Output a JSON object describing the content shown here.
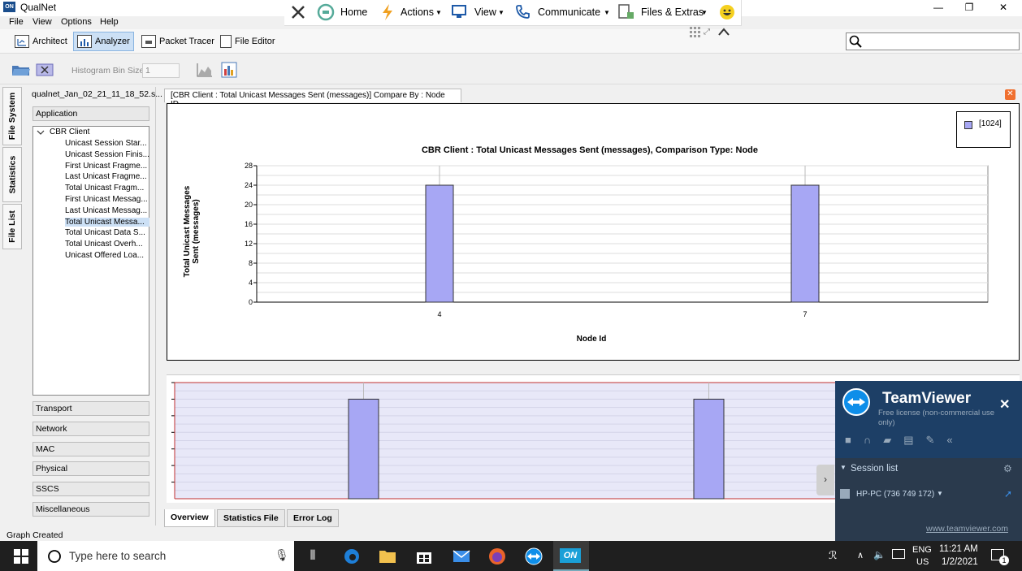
{
  "window": {
    "title": "QualNet",
    "app_icon_text": "ON",
    "minimize": "—",
    "restore": "❐",
    "close": "✕"
  },
  "menu": [
    "File",
    "View",
    "Options",
    "Help"
  ],
  "actions": {
    "home": "Home",
    "actions": "Actions",
    "view": "View",
    "communicate": "Communicate",
    "files_extras": "Files & Extras"
  },
  "modes": {
    "architect": "Architect",
    "analyzer": "Analyzer",
    "packet_tracer": "Packet Tracer",
    "file_editor": "File Editor"
  },
  "toolbar": {
    "histogram_label": "Histogram Bin Size",
    "histogram_value": "1"
  },
  "side_tabs": [
    "File System",
    "Statistics",
    "File List"
  ],
  "left_panel": {
    "filename": "qualnet_Jan_02_21_11_18_52.s...",
    "top_category": "Application",
    "tree_root": "CBR Client",
    "tree_items": [
      "Unicast Session Star...",
      "Unicast Session Finis...",
      "First Unicast Fragme...",
      "Last Unicast Fragme...",
      "Total Unicast Fragm...",
      "First Unicast Messag...",
      "Last Unicast Messag...",
      "Total Unicast Messa...",
      "Total Unicast Data S...",
      "Total Unicast Overh...",
      "Unicast Offered Loa..."
    ],
    "selected_index": 7,
    "bottom_categories": [
      "Transport",
      "Network",
      "MAC",
      "Physical",
      "SSCS",
      "Miscellaneous"
    ]
  },
  "chart_tab": "[CBR Client :  Total Unicast Messages Sent (messages)] Compare By : Node ID",
  "chart_data": {
    "type": "bar",
    "title": "CBR Client :  Total Unicast Messages Sent (messages), Comparison Type: Node",
    "xlabel": "Node Id",
    "ylabel": "Total Unicast Messages Sent (messages)",
    "categories": [
      "4",
      "7"
    ],
    "series": [
      {
        "name": "[1024]",
        "values": [
          24,
          24
        ],
        "color": "#a7a7f4"
      }
    ],
    "ylim": [
      0,
      28
    ],
    "yticks": [
      "0",
      "4",
      "8",
      "12",
      "16",
      "20",
      "24",
      "28"
    ],
    "grid": true,
    "legend": "top-right"
  },
  "bottom_tabs": [
    "Overview",
    "Statistics File",
    "Error Log"
  ],
  "status": "Graph Created",
  "teamviewer": {
    "brand": "TeamViewer",
    "license": "Free license (non-commercial use only)",
    "session_list": "Session list",
    "session_item": "HP-PC (736 749 172)",
    "url": "www.teamviewer.com"
  },
  "taskbar": {
    "search_placeholder": "Type here to search",
    "lang": "ENG",
    "region": "US",
    "time": "11:21 AM",
    "date": "1/2/2021",
    "notification_count": "1"
  }
}
